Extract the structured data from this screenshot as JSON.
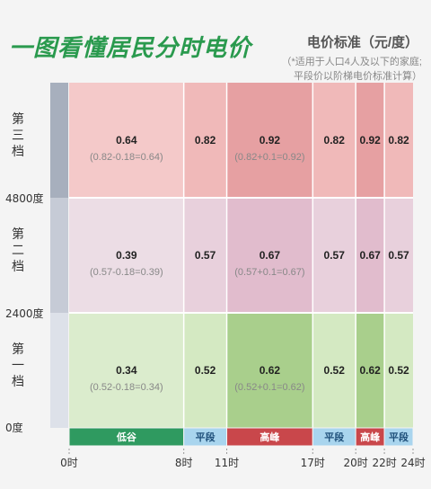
{
  "title": "一图看懂居民分时电价",
  "unit_label": "电价标准（元/度）",
  "notes": [
    "（*适用于人口4人及以下的家庭;",
    "平段价以阶梯电价标准计算）"
  ],
  "colors": {
    "valley": "#2f9a60",
    "flat": "#a9d5ee",
    "peak": "#c9474b",
    "tier1": "#dbeccd",
    "tier2": "#ecdde5",
    "tier3": "#f4c9c9",
    "axis": "#a7afbd"
  },
  "chart_data": {
    "type": "heatmap",
    "x_boundaries": [
      0,
      8,
      11,
      17,
      20,
      22,
      24
    ],
    "x_tick_labels": [
      "0时",
      "8时",
      "11时",
      "17时",
      "20时",
      "22时",
      "24时"
    ],
    "periods": [
      {
        "label": "低谷",
        "kind": "valley",
        "start": 0,
        "end": 8
      },
      {
        "label": "平段",
        "kind": "flat",
        "start": 8,
        "end": 11
      },
      {
        "label": "高峰",
        "kind": "peak",
        "start": 11,
        "end": 17
      },
      {
        "label": "平段",
        "kind": "flat",
        "start": 17,
        "end": 20
      },
      {
        "label": "高峰",
        "kind": "peak",
        "start": 20,
        "end": 22
      },
      {
        "label": "平段",
        "kind": "flat",
        "start": 22,
        "end": 24
      }
    ],
    "tiers": [
      {
        "label": "第三档",
        "values": [
          0.64,
          0.82,
          0.92,
          0.82,
          0.92,
          0.82
        ],
        "formulas": [
          "(0.82-0.18=0.64)",
          "",
          "(0.82+0.1=0.92)",
          "",
          "",
          ""
        ]
      },
      {
        "label": "第二档",
        "values": [
          0.39,
          0.57,
          0.67,
          0.57,
          0.67,
          0.57
        ],
        "formulas": [
          "(0.57-0.18=0.39)",
          "",
          "(0.57+0.1=0.67)",
          "",
          "",
          ""
        ]
      },
      {
        "label": "第一档",
        "values": [
          0.34,
          0.52,
          0.62,
          0.52,
          0.62,
          0.52
        ],
        "formulas": [
          "(0.52-0.18=0.34)",
          "",
          "(0.52+0.1=0.62)",
          "",
          "",
          ""
        ]
      }
    ],
    "y_boundary_labels": [
      "4800度",
      "2400度",
      "0度"
    ]
  }
}
